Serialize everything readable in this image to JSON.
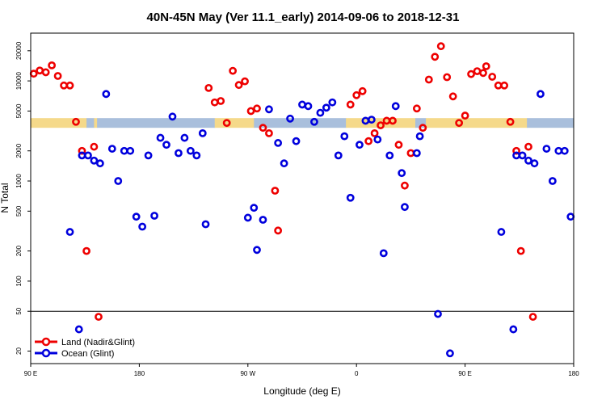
{
  "chart_data": {
    "type": "scatter",
    "title": "40N-45N May (Ver 11.1_early)   2014-09-06 to 2018-12-31",
    "xlabel": "Longitude (deg E)",
    "ylabel": "N Total",
    "y_scale": "log",
    "x_range": [
      0,
      360
    ],
    "y_range": [
      15,
      30000
    ],
    "x_ticks": [
      {
        "value": 0,
        "label": "90 E"
      },
      {
        "value": 72,
        "label": "180"
      },
      {
        "value": 144,
        "label": "90 W"
      },
      {
        "value": 216,
        "label": "0"
      },
      {
        "value": 288,
        "label": "90 E"
      },
      {
        "value": 360,
        "label": "180"
      }
    ],
    "y_ticks": [
      {
        "value": 20,
        "label": "20"
      },
      {
        "value": 50,
        "label": "50"
      },
      {
        "value": 100,
        "label": "100"
      },
      {
        "value": 200,
        "label": "200"
      },
      {
        "value": 500,
        "label": "500"
      },
      {
        "value": 1000,
        "label": "1000"
      },
      {
        "value": 2000,
        "label": "2000"
      },
      {
        "value": 5000,
        "label": "5000"
      },
      {
        "value": 10000,
        "label": "10000"
      },
      {
        "value": 20000,
        "label": "20000"
      }
    ],
    "reference_line": 50,
    "land_mask_y": 3800,
    "land_mask_colors": {
      "land": "#f5d98a",
      "ocean": "#a9bfdc"
    },
    "land_mask_segments": [
      [
        0,
        37,
        "land"
      ],
      [
        37,
        42,
        "ocean"
      ],
      [
        42,
        44,
        "land"
      ],
      [
        44,
        122,
        "ocean"
      ],
      [
        122,
        148,
        "land"
      ],
      [
        148,
        158,
        "ocean"
      ],
      [
        158,
        209,
        "ocean"
      ],
      [
        209,
        255,
        "land"
      ],
      [
        255,
        262,
        "ocean"
      ],
      [
        262,
        329,
        "land"
      ],
      [
        329,
        360,
        "ocean"
      ]
    ],
    "grid": false,
    "legend_position": "bottom-left",
    "series": [
      {
        "name": "Land (Nadir&Glint)",
        "color": "#ee0000",
        "points": [
          [
            2,
            11800
          ],
          [
            6,
            12700
          ],
          [
            10,
            12200
          ],
          [
            14,
            14300
          ],
          [
            18,
            11200
          ],
          [
            22,
            9000
          ],
          [
            26,
            9000
          ],
          [
            30,
            3900
          ],
          [
            34,
            2000
          ],
          [
            37,
            200
          ],
          [
            42,
            2200
          ],
          [
            45,
            44
          ],
          [
            118,
            8500
          ],
          [
            122,
            6100
          ],
          [
            126,
            6300
          ],
          [
            130,
            3800
          ],
          [
            134,
            12600
          ],
          [
            138,
            9100
          ],
          [
            142,
            9900
          ],
          [
            146,
            5000
          ],
          [
            150,
            5300
          ],
          [
            154,
            3400
          ],
          [
            158,
            3000
          ],
          [
            162,
            800
          ],
          [
            164,
            320
          ],
          [
            212,
            5800
          ],
          [
            216,
            7200
          ],
          [
            220,
            7900
          ],
          [
            224,
            2500
          ],
          [
            228,
            3000
          ],
          [
            232,
            3600
          ],
          [
            236,
            4000
          ],
          [
            240,
            4000
          ],
          [
            244,
            2300
          ],
          [
            248,
            900
          ],
          [
            252,
            1900
          ],
          [
            256,
            5300
          ],
          [
            260,
            3400
          ],
          [
            264,
            10300
          ],
          [
            268,
            17400
          ],
          [
            272,
            22200
          ],
          [
            276,
            10900
          ],
          [
            280,
            7000
          ],
          [
            284,
            3800
          ],
          [
            288,
            4500
          ],
          [
            292,
            11700
          ],
          [
            296,
            12500
          ],
          [
            300,
            12000
          ],
          [
            302,
            14000
          ],
          [
            306,
            11000
          ],
          [
            310,
            9000
          ],
          [
            314,
            9000
          ],
          [
            318,
            3900
          ],
          [
            322,
            2000
          ],
          [
            325,
            200
          ],
          [
            330,
            2200
          ],
          [
            333,
            44
          ]
        ]
      },
      {
        "name": "Ocean (Glint)",
        "color": "#0000dd",
        "points": [
          [
            26,
            310
          ],
          [
            32,
            33
          ],
          [
            34,
            1800
          ],
          [
            38,
            1800
          ],
          [
            42,
            1600
          ],
          [
            46,
            1500
          ],
          [
            50,
            7400
          ],
          [
            54,
            2100
          ],
          [
            58,
            1000
          ],
          [
            62,
            2000
          ],
          [
            66,
            2000
          ],
          [
            70,
            440
          ],
          [
            74,
            350
          ],
          [
            78,
            1800
          ],
          [
            82,
            450
          ],
          [
            86,
            2700
          ],
          [
            90,
            2300
          ],
          [
            94,
            4400
          ],
          [
            98,
            1900
          ],
          [
            102,
            2700
          ],
          [
            106,
            2000
          ],
          [
            110,
            1800
          ],
          [
            114,
            3000
          ],
          [
            116,
            370
          ],
          [
            144,
            430
          ],
          [
            148,
            540
          ],
          [
            150,
            205
          ],
          [
            154,
            410
          ],
          [
            158,
            5200
          ],
          [
            164,
            2400
          ],
          [
            168,
            1500
          ],
          [
            172,
            4200
          ],
          [
            176,
            2500
          ],
          [
            180,
            5800
          ],
          [
            184,
            5600
          ],
          [
            188,
            3900
          ],
          [
            192,
            4800
          ],
          [
            196,
            5400
          ],
          [
            200,
            6100
          ],
          [
            204,
            1800
          ],
          [
            208,
            2800
          ],
          [
            212,
            680
          ],
          [
            218,
            2300
          ],
          [
            222,
            4000
          ],
          [
            226,
            4100
          ],
          [
            230,
            2600
          ],
          [
            234,
            190
          ],
          [
            238,
            1800
          ],
          [
            242,
            5600
          ],
          [
            246,
            1200
          ],
          [
            248,
            550
          ],
          [
            256,
            1900
          ],
          [
            258,
            2800
          ],
          [
            270,
            47
          ],
          [
            278,
            19
          ],
          [
            312,
            310
          ],
          [
            320,
            33
          ],
          [
            322,
            1800
          ],
          [
            326,
            1800
          ],
          [
            330,
            1600
          ],
          [
            334,
            1500
          ],
          [
            338,
            7400
          ],
          [
            342,
            2100
          ],
          [
            346,
            1000
          ],
          [
            350,
            2000
          ],
          [
            354,
            2000
          ],
          [
            358,
            440
          ]
        ]
      }
    ]
  }
}
